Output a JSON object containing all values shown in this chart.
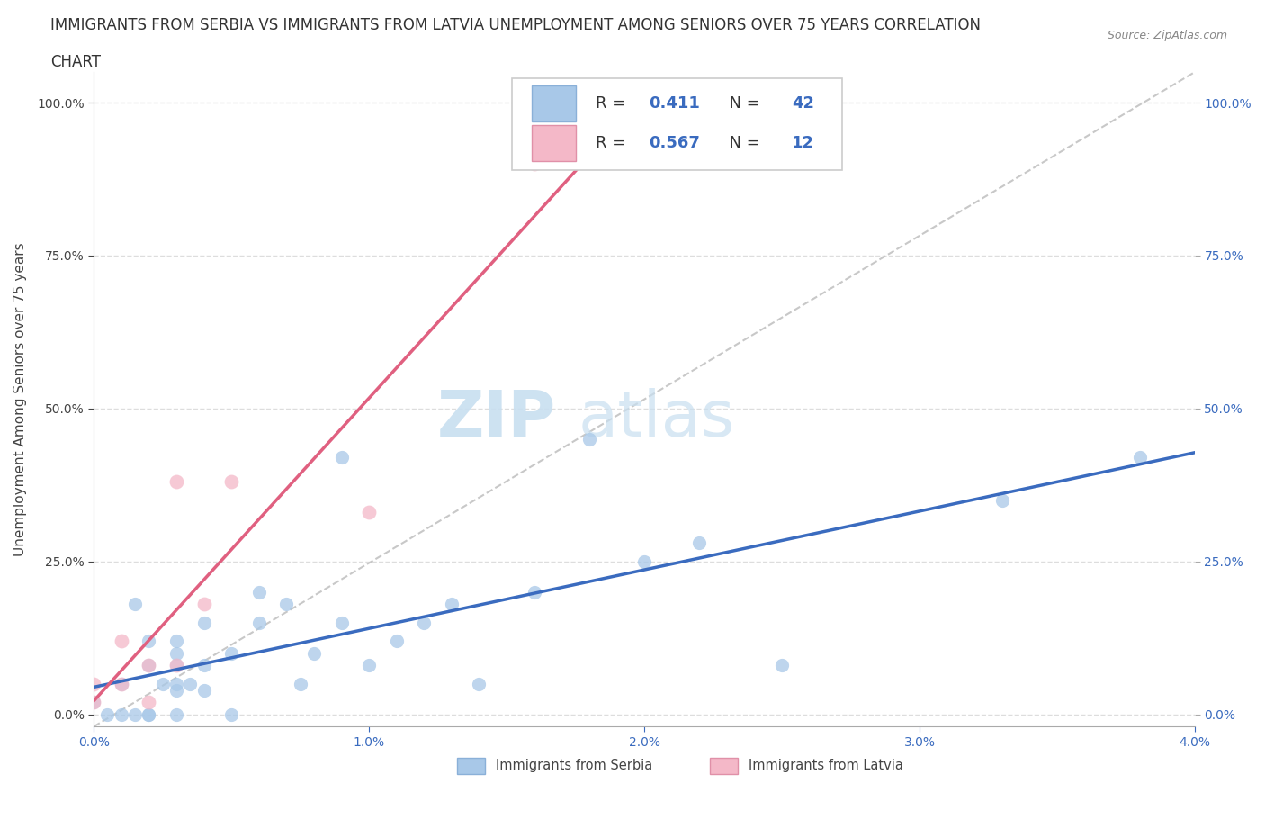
{
  "title_line1": "IMMIGRANTS FROM SERBIA VS IMMIGRANTS FROM LATVIA UNEMPLOYMENT AMONG SENIORS OVER 75 YEARS CORRELATION",
  "title_line2": "CHART",
  "source": "Source: ZipAtlas.com",
  "xlabel_ticks": [
    "0.0%",
    "1.0%",
    "2.0%",
    "3.0%",
    "4.0%"
  ],
  "ylabel_ticks": [
    "0.0%",
    "25.0%",
    "50.0%",
    "75.0%",
    "100.0%"
  ],
  "ylabel_label": "Unemployment Among Seniors over 75 years",
  "xlim": [
    0.0,
    0.04
  ],
  "ylim": [
    -0.02,
    1.05
  ],
  "serbia_R": 0.411,
  "serbia_N": 42,
  "latvia_R": 0.567,
  "latvia_N": 12,
  "serbia_color": "#a8c8e8",
  "latvia_color": "#f4b8c8",
  "serbia_line_color": "#3a6bbf",
  "latvia_line_color": "#e06080",
  "diag_color": "#c8c8c8",
  "background_color": "#ffffff",
  "grid_color": "#dddddd",
  "watermark_color": "#c8dff0",
  "serbia_x": [
    0.0,
    0.0005,
    0.001,
    0.001,
    0.0015,
    0.0015,
    0.002,
    0.002,
    0.002,
    0.002,
    0.0025,
    0.003,
    0.003,
    0.003,
    0.003,
    0.003,
    0.003,
    0.0035,
    0.004,
    0.004,
    0.004,
    0.005,
    0.005,
    0.006,
    0.006,
    0.007,
    0.0075,
    0.008,
    0.009,
    0.009,
    0.01,
    0.011,
    0.012,
    0.013,
    0.014,
    0.016,
    0.018,
    0.02,
    0.022,
    0.025,
    0.033,
    0.038
  ],
  "serbia_y": [
    0.02,
    0.0,
    0.0,
    0.05,
    0.0,
    0.18,
    0.0,
    0.0,
    0.08,
    0.12,
    0.05,
    0.0,
    0.04,
    0.05,
    0.08,
    0.1,
    0.12,
    0.05,
    0.04,
    0.08,
    0.15,
    0.0,
    0.1,
    0.15,
    0.2,
    0.18,
    0.05,
    0.1,
    0.15,
    0.42,
    0.08,
    0.12,
    0.15,
    0.18,
    0.05,
    0.2,
    0.45,
    0.25,
    0.28,
    0.08,
    0.35,
    0.42
  ],
  "latvia_x": [
    0.0,
    0.0,
    0.001,
    0.001,
    0.002,
    0.002,
    0.003,
    0.003,
    0.004,
    0.005,
    0.01,
    0.016
  ],
  "latvia_y": [
    0.02,
    0.05,
    0.05,
    0.12,
    0.02,
    0.08,
    0.08,
    0.38,
    0.18,
    0.38,
    0.33,
    0.9
  ],
  "watermark_zip": "ZIP",
  "watermark_atlas": "atlas",
  "title_fontsize": 12,
  "axis_label_fontsize": 11,
  "tick_fontsize": 10,
  "legend_fontsize": 13
}
